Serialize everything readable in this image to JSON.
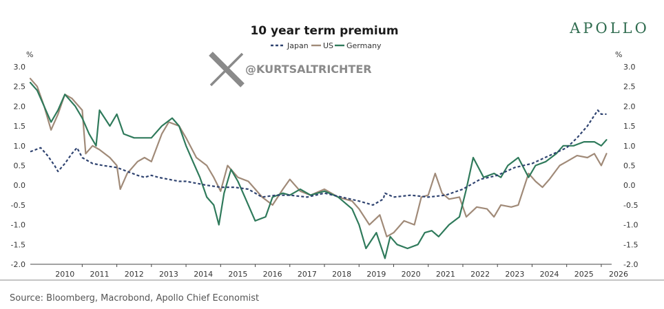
{
  "brand": {
    "logo_text": "APOLLO",
    "logo_color": "#2e6b4e"
  },
  "watermark": {
    "icon": "x-logo-icon",
    "handle": "@KURTSALTRICHTER",
    "color": "#8a8a8a"
  },
  "source": "Source: Bloomberg, Macrobond, Apollo Chief Economist",
  "chart_data": {
    "type": "line",
    "title": "10 year term premium",
    "y_unit_left": "%",
    "y_unit_right": "%",
    "ylim": [
      -2.0,
      3.0
    ],
    "yticks": [
      "3.0",
      "2.5",
      "2.0",
      "1.5",
      "1.0",
      "0.5",
      "0.0",
      "-0.5",
      "-1.0",
      "-1.5",
      "-2.0"
    ],
    "xlim": [
      2009.5,
      2026.3
    ],
    "xticks": [
      "2010",
      "2011",
      "2012",
      "2013",
      "2014",
      "2015",
      "2016",
      "2017",
      "2018",
      "2019",
      "2020",
      "2021",
      "2022",
      "2023",
      "2024",
      "2025",
      "2026"
    ],
    "grid": false,
    "legend_position": "top-center",
    "series": [
      {
        "name": "Japan",
        "color": "#2f4370",
        "style": "dashed",
        "points": [
          [
            2009.5,
            0.85
          ],
          [
            2009.8,
            0.95
          ],
          [
            2010.0,
            0.75
          ],
          [
            2010.2,
            0.5
          ],
          [
            2010.3,
            0.35
          ],
          [
            2010.5,
            0.55
          ],
          [
            2010.7,
            0.8
          ],
          [
            2010.85,
            0.95
          ],
          [
            2011.0,
            0.7
          ],
          [
            2011.3,
            0.55
          ],
          [
            2011.6,
            0.5
          ],
          [
            2012.0,
            0.45
          ],
          [
            2012.3,
            0.35
          ],
          [
            2012.6,
            0.25
          ],
          [
            2012.8,
            0.2
          ],
          [
            2013.0,
            0.25
          ],
          [
            2013.2,
            0.2
          ],
          [
            2013.5,
            0.15
          ],
          [
            2013.8,
            0.1
          ],
          [
            2014.0,
            0.1
          ],
          [
            2014.3,
            0.05
          ],
          [
            2014.6,
            0.0
          ],
          [
            2015.0,
            -0.05
          ],
          [
            2015.4,
            -0.05
          ],
          [
            2015.8,
            -0.1
          ],
          [
            2016.2,
            -0.3
          ],
          [
            2016.6,
            -0.25
          ],
          [
            2017.0,
            -0.25
          ],
          [
            2017.5,
            -0.3
          ],
          [
            2018.0,
            -0.2
          ],
          [
            2018.5,
            -0.3
          ],
          [
            2019.0,
            -0.4
          ],
          [
            2019.4,
            -0.5
          ],
          [
            2019.7,
            -0.35
          ],
          [
            2019.75,
            -0.2
          ],
          [
            2020.0,
            -0.3
          ],
          [
            2020.5,
            -0.25
          ],
          [
            2021.0,
            -0.3
          ],
          [
            2021.5,
            -0.25
          ],
          [
            2022.0,
            -0.1
          ],
          [
            2022.5,
            0.15
          ],
          [
            2023.0,
            0.25
          ],
          [
            2023.5,
            0.45
          ],
          [
            2024.0,
            0.55
          ],
          [
            2024.5,
            0.75
          ],
          [
            2025.0,
            0.95
          ],
          [
            2025.3,
            1.2
          ],
          [
            2025.6,
            1.5
          ],
          [
            2025.9,
            1.9
          ],
          [
            2026.0,
            1.8
          ],
          [
            2026.15,
            1.8
          ]
        ]
      },
      {
        "name": "US",
        "color": "#a08a78",
        "style": "solid",
        "points": [
          [
            2009.5,
            2.7
          ],
          [
            2009.7,
            2.5
          ],
          [
            2009.9,
            2.0
          ],
          [
            2010.1,
            1.4
          ],
          [
            2010.3,
            1.8
          ],
          [
            2010.5,
            2.3
          ],
          [
            2010.7,
            2.2
          ],
          [
            2011.0,
            1.9
          ],
          [
            2011.1,
            0.8
          ],
          [
            2011.3,
            1.0
          ],
          [
            2011.5,
            0.9
          ],
          [
            2011.8,
            0.7
          ],
          [
            2012.0,
            0.5
          ],
          [
            2012.1,
            -0.1
          ],
          [
            2012.3,
            0.3
          ],
          [
            2012.6,
            0.6
          ],
          [
            2012.8,
            0.7
          ],
          [
            2013.0,
            0.6
          ],
          [
            2013.3,
            1.3
          ],
          [
            2013.5,
            1.6
          ],
          [
            2013.8,
            1.5
          ],
          [
            2014.0,
            1.2
          ],
          [
            2014.3,
            0.7
          ],
          [
            2014.6,
            0.5
          ],
          [
            2014.8,
            0.2
          ],
          [
            2015.0,
            -0.15
          ],
          [
            2015.2,
            0.5
          ],
          [
            2015.5,
            0.2
          ],
          [
            2015.8,
            0.1
          ],
          [
            2016.2,
            -0.3
          ],
          [
            2016.5,
            -0.5
          ],
          [
            2016.8,
            -0.1
          ],
          [
            2017.0,
            0.15
          ],
          [
            2017.3,
            -0.15
          ],
          [
            2017.6,
            -0.25
          ],
          [
            2018.0,
            -0.1
          ],
          [
            2018.4,
            -0.3
          ],
          [
            2018.8,
            -0.4
          ],
          [
            2019.0,
            -0.6
          ],
          [
            2019.3,
            -1.0
          ],
          [
            2019.6,
            -0.75
          ],
          [
            2019.8,
            -1.3
          ],
          [
            2020.0,
            -1.2
          ],
          [
            2020.3,
            -0.9
          ],
          [
            2020.6,
            -1.0
          ],
          [
            2020.8,
            -0.3
          ],
          [
            2021.0,
            -0.25
          ],
          [
            2021.2,
            0.3
          ],
          [
            2021.4,
            -0.2
          ],
          [
            2021.6,
            -0.35
          ],
          [
            2021.9,
            -0.3
          ],
          [
            2022.1,
            -0.8
          ],
          [
            2022.4,
            -0.55
          ],
          [
            2022.7,
            -0.6
          ],
          [
            2022.9,
            -0.8
          ],
          [
            2023.1,
            -0.5
          ],
          [
            2023.4,
            -0.55
          ],
          [
            2023.6,
            -0.5
          ],
          [
            2023.9,
            0.3
          ],
          [
            2024.1,
            0.1
          ],
          [
            2024.3,
            -0.05
          ],
          [
            2024.5,
            0.15
          ],
          [
            2024.8,
            0.5
          ],
          [
            2025.0,
            0.6
          ],
          [
            2025.3,
            0.75
          ],
          [
            2025.6,
            0.7
          ],
          [
            2025.8,
            0.8
          ],
          [
            2026.0,
            0.5
          ],
          [
            2026.15,
            0.8
          ]
        ]
      },
      {
        "name": "Germany",
        "color": "#2f7a5b",
        "style": "solid",
        "points": [
          [
            2009.5,
            2.6
          ],
          [
            2009.7,
            2.4
          ],
          [
            2009.9,
            2.0
          ],
          [
            2010.1,
            1.6
          ],
          [
            2010.3,
            1.9
          ],
          [
            2010.5,
            2.3
          ],
          [
            2010.8,
            2.0
          ],
          [
            2011.0,
            1.7
          ],
          [
            2011.2,
            1.3
          ],
          [
            2011.4,
            1.0
          ],
          [
            2011.5,
            1.9
          ],
          [
            2011.8,
            1.5
          ],
          [
            2012.0,
            1.8
          ],
          [
            2012.2,
            1.3
          ],
          [
            2012.5,
            1.2
          ],
          [
            2012.8,
            1.2
          ],
          [
            2013.0,
            1.2
          ],
          [
            2013.3,
            1.5
          ],
          [
            2013.6,
            1.7
          ],
          [
            2013.8,
            1.5
          ],
          [
            2014.0,
            1.0
          ],
          [
            2014.2,
            0.6
          ],
          [
            2014.4,
            0.2
          ],
          [
            2014.6,
            -0.3
          ],
          [
            2014.8,
            -0.5
          ],
          [
            2014.95,
            -1.0
          ],
          [
            2015.1,
            -0.2
          ],
          [
            2015.3,
            0.4
          ],
          [
            2015.5,
            0.1
          ],
          [
            2015.7,
            -0.3
          ],
          [
            2016.0,
            -0.9
          ],
          [
            2016.3,
            -0.8
          ],
          [
            2016.5,
            -0.3
          ],
          [
            2016.8,
            -0.2
          ],
          [
            2017.0,
            -0.25
          ],
          [
            2017.3,
            -0.1
          ],
          [
            2017.6,
            -0.25
          ],
          [
            2018.0,
            -0.15
          ],
          [
            2018.4,
            -0.3
          ],
          [
            2018.8,
            -0.6
          ],
          [
            2019.0,
            -1.0
          ],
          [
            2019.2,
            -1.6
          ],
          [
            2019.5,
            -1.2
          ],
          [
            2019.75,
            -1.85
          ],
          [
            2019.9,
            -1.3
          ],
          [
            2020.1,
            -1.5
          ],
          [
            2020.4,
            -1.6
          ],
          [
            2020.7,
            -1.5
          ],
          [
            2020.9,
            -1.2
          ],
          [
            2021.1,
            -1.15
          ],
          [
            2021.3,
            -1.3
          ],
          [
            2021.6,
            -1.0
          ],
          [
            2021.9,
            -0.8
          ],
          [
            2022.1,
            -0.1
          ],
          [
            2022.3,
            0.7
          ],
          [
            2022.6,
            0.2
          ],
          [
            2022.9,
            0.3
          ],
          [
            2023.1,
            0.2
          ],
          [
            2023.3,
            0.5
          ],
          [
            2023.6,
            0.7
          ],
          [
            2023.9,
            0.2
          ],
          [
            2024.1,
            0.5
          ],
          [
            2024.4,
            0.6
          ],
          [
            2024.7,
            0.8
          ],
          [
            2024.9,
            1.0
          ],
          [
            2025.2,
            1.0
          ],
          [
            2025.5,
            1.1
          ],
          [
            2025.8,
            1.1
          ],
          [
            2026.0,
            1.0
          ],
          [
            2026.15,
            1.15
          ]
        ]
      }
    ]
  }
}
